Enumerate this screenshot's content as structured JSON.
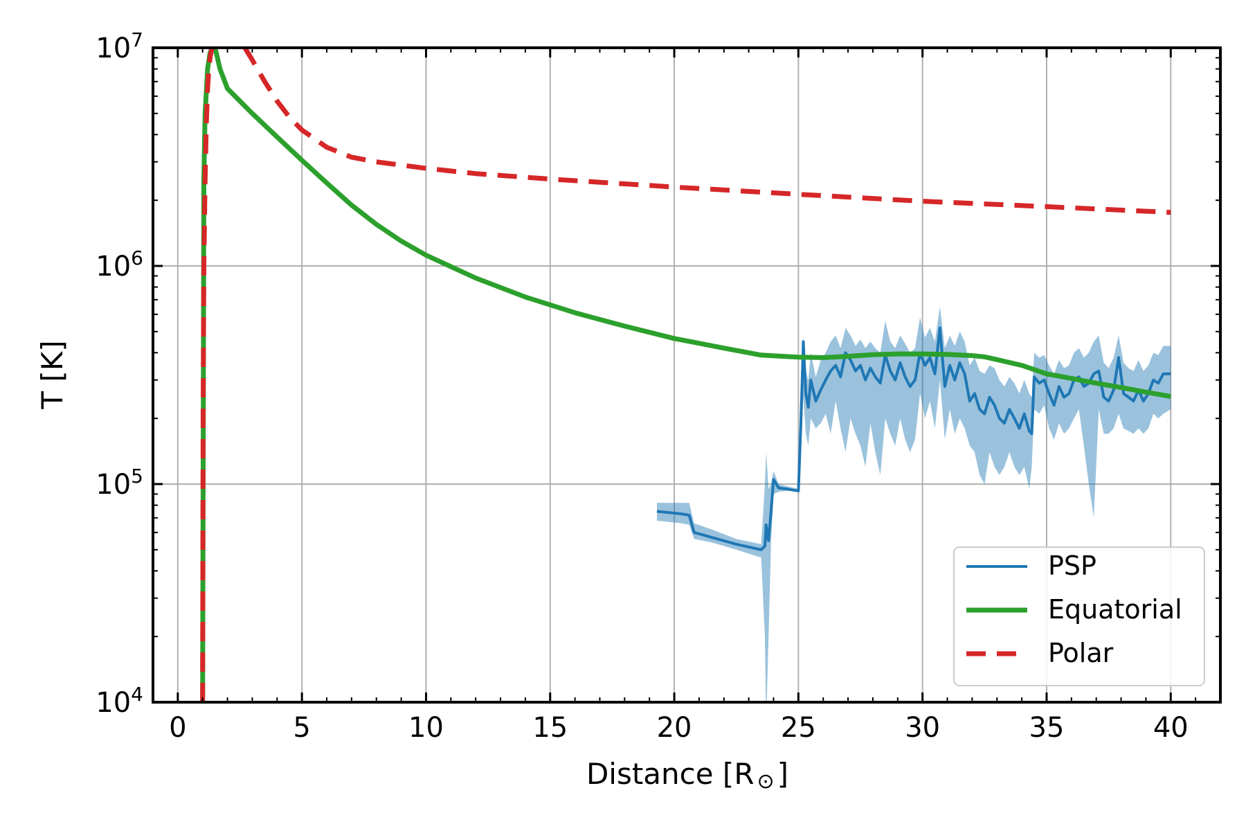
{
  "chart_data": {
    "type": "line",
    "xlabel": "Distance [R",
    "xlabel_symbol": "⊙",
    "xlabel_close": "]",
    "ylabel": "T [K]",
    "yscale": "log",
    "xlim": [
      -1,
      42
    ],
    "ylim": [
      10000,
      10000000
    ],
    "grid": true,
    "x_ticks": [
      {
        "value": 0,
        "label": "0"
      },
      {
        "value": 5,
        "label": "5"
      },
      {
        "value": 10,
        "label": "10"
      },
      {
        "value": 15,
        "label": "15"
      },
      {
        "value": 20,
        "label": "20"
      },
      {
        "value": 25,
        "label": "25"
      },
      {
        "value": 30,
        "label": "30"
      },
      {
        "value": 35,
        "label": "35"
      },
      {
        "value": 40,
        "label": "40"
      }
    ],
    "y_ticks": [
      {
        "value": 10000,
        "base": "10",
        "exp": "4"
      },
      {
        "value": 100000,
        "base": "10",
        "exp": "5"
      },
      {
        "value": 1000000,
        "base": "10",
        "exp": "6"
      },
      {
        "value": 10000000,
        "base": "10",
        "exp": "7"
      }
    ],
    "legend": {
      "position": "lower-right",
      "entries": [
        {
          "name": "PSP",
          "color": "#1f77b4",
          "style": "solid-thin"
        },
        {
          "name": "Equatorial",
          "color": "#2ca02c",
          "style": "solid"
        },
        {
          "name": "Polar",
          "color": "#d62728",
          "style": "dashed"
        }
      ]
    },
    "series": [
      {
        "name": "Equatorial",
        "color": "#2ca02c",
        "style": "solid",
        "x": [
          1.0,
          1.05,
          1.1,
          1.2,
          1.3,
          1.4,
          1.5,
          1.7,
          2.0,
          2.5,
          3.0,
          4.0,
          5.0,
          6.0,
          7.0,
          8.0,
          9.0,
          10.0,
          12.0,
          14.0,
          16.0,
          18.0,
          20.0,
          22.0,
          23.5,
          25.0,
          26.0,
          27.0,
          28.0,
          29.0,
          30.0,
          31.0,
          32.0,
          32.5,
          33.0,
          34.0,
          35.0,
          36.0,
          37.0,
          38.0,
          39.0,
          40.0
        ],
        "y": [
          10000,
          2500000,
          5000000,
          8000000,
          9500000,
          10000000,
          10000000,
          8000000,
          6500000,
          5700000,
          5000000,
          3900000,
          3050000,
          2400000,
          1900000,
          1550000,
          1300000,
          1120000,
          880000,
          720000,
          610000,
          530000,
          465000,
          420000,
          390000,
          382000,
          380000,
          385000,
          392000,
          395000,
          395000,
          393000,
          388000,
          383000,
          372000,
          350000,
          320000,
          305000,
          290000,
          277000,
          264000,
          252000
        ]
      },
      {
        "name": "Polar",
        "color": "#d62728",
        "style": "dashed",
        "x": [
          1.0,
          1.02,
          1.05,
          1.1,
          1.15,
          1.2,
          1.25,
          1.3,
          1.35,
          1.4
        ],
        "y": [
          10000,
          200000,
          1000000,
          2500000,
          4500000,
          6500000,
          8000000,
          9000000,
          9700000,
          10000000
        ],
        "x2": [
          2.7,
          3.0,
          3.5,
          4.0,
          4.5,
          5.0,
          6.0,
          7.0,
          8.0,
          10.0,
          12.0,
          15.0,
          20.0,
          25.0,
          30.0,
          35.0,
          40.0
        ],
        "y2": [
          10000000,
          8800000,
          7000000,
          5700000,
          4800000,
          4200000,
          3500000,
          3150000,
          3000000,
          2800000,
          2650000,
          2500000,
          2300000,
          2130000,
          1980000,
          1870000,
          1760000
        ]
      },
      {
        "name": "PSP",
        "color": "#1f77b4",
        "style": "solid-thin",
        "x": [
          19.3,
          19.8,
          20.3,
          20.6,
          20.8,
          21.5,
          22.5,
          23.5,
          23.65,
          23.7,
          23.8,
          23.9,
          24.0,
          24.2,
          24.5,
          25.0,
          25.1,
          25.2,
          25.3,
          25.4,
          25.5,
          25.7,
          25.9,
          26.1,
          26.3,
          26.5,
          26.7,
          26.9,
          27.1,
          27.3,
          27.5,
          27.7,
          27.9,
          28.1,
          28.3,
          28.5,
          28.7,
          28.9,
          29.1,
          29.3,
          29.5,
          29.7,
          29.9,
          30.1,
          30.3,
          30.5,
          30.7,
          30.9,
          31.1,
          31.3,
          31.5,
          31.7,
          31.9,
          32.1,
          32.3,
          32.5,
          32.7,
          32.9,
          33.1,
          33.3,
          33.5,
          33.7,
          33.9,
          34.1,
          34.3,
          34.4,
          34.5,
          34.7,
          34.9,
          35.1,
          35.3,
          35.5,
          35.7,
          35.9,
          36.1,
          36.3,
          36.5,
          36.7,
          36.9,
          37.1,
          37.3,
          37.5,
          37.7,
          37.9,
          38.1,
          38.3,
          38.5,
          38.7,
          38.9,
          39.1,
          39.3,
          39.5,
          39.7,
          40.0
        ],
        "y": [
          75000,
          74000,
          73000,
          72000,
          60000,
          57000,
          53000,
          50000,
          52000,
          65000,
          55000,
          75000,
          105000,
          96000,
          95000,
          93000,
          190000,
          450000,
          260000,
          225000,
          300000,
          240000,
          270000,
          300000,
          330000,
          350000,
          310000,
          400000,
          370000,
          330000,
          350000,
          300000,
          340000,
          310000,
          290000,
          390000,
          330000,
          300000,
          360000,
          310000,
          280000,
          300000,
          400000,
          350000,
          380000,
          320000,
          520000,
          280000,
          350000,
          300000,
          360000,
          320000,
          240000,
          260000,
          220000,
          210000,
          250000,
          230000,
          200000,
          190000,
          220000,
          200000,
          180000,
          210000,
          175000,
          170000,
          310000,
          290000,
          300000,
          260000,
          230000,
          280000,
          250000,
          260000,
          300000,
          310000,
          280000,
          290000,
          320000,
          330000,
          250000,
          240000,
          270000,
          380000,
          260000,
          250000,
          240000,
          270000,
          240000,
          260000,
          300000,
          290000,
          320000,
          320000
        ],
        "band_lower": [
          68000,
          67000,
          66000,
          65000,
          56000,
          54000,
          50000,
          46000,
          20000,
          8000,
          20000,
          55000,
          90000,
          92000,
          93000,
          93000,
          150000,
          250000,
          170000,
          150000,
          200000,
          180000,
          190000,
          210000,
          170000,
          240000,
          180000,
          140000,
          200000,
          170000,
          150000,
          120000,
          190000,
          140000,
          110000,
          200000,
          170000,
          150000,
          200000,
          160000,
          140000,
          160000,
          260000,
          200000,
          240000,
          180000,
          300000,
          160000,
          220000,
          170000,
          200000,
          180000,
          150000,
          140000,
          110000,
          100000,
          140000,
          120000,
          110000,
          120000,
          140000,
          120000,
          110000,
          120000,
          95000,
          120000,
          220000,
          210000,
          230000,
          180000,
          160000,
          190000,
          170000,
          180000,
          200000,
          220000,
          150000,
          100000,
          70000,
          220000,
          170000,
          170000,
          180000,
          210000,
          180000,
          175000,
          170000,
          180000,
          170000,
          180000,
          210000,
          200000,
          210000,
          220000
        ],
        "band_upper": [
          82000,
          82000,
          82000,
          82000,
          66000,
          62000,
          56000,
          53000,
          100000,
          140000,
          95000,
          100000,
          115000,
          100000,
          98000,
          95000,
          240000,
          470000,
          330000,
          300000,
          400000,
          310000,
          370000,
          400000,
          450000,
          480000,
          420000,
          520000,
          480000,
          430000,
          460000,
          420000,
          450000,
          420000,
          400000,
          560000,
          450000,
          420000,
          480000,
          440000,
          400000,
          420000,
          580000,
          470000,
          520000,
          450000,
          650000,
          420000,
          480000,
          430000,
          500000,
          450000,
          350000,
          380000,
          330000,
          320000,
          350000,
          340000,
          300000,
          280000,
          310000,
          290000,
          260000,
          300000,
          260000,
          250000,
          400000,
          380000,
          390000,
          350000,
          320000,
          370000,
          340000,
          350000,
          400000,
          420000,
          380000,
          400000,
          450000,
          480000,
          360000,
          340000,
          380000,
          480000,
          360000,
          340000,
          330000,
          370000,
          330000,
          350000,
          400000,
          390000,
          430000,
          430000
        ]
      }
    ]
  }
}
